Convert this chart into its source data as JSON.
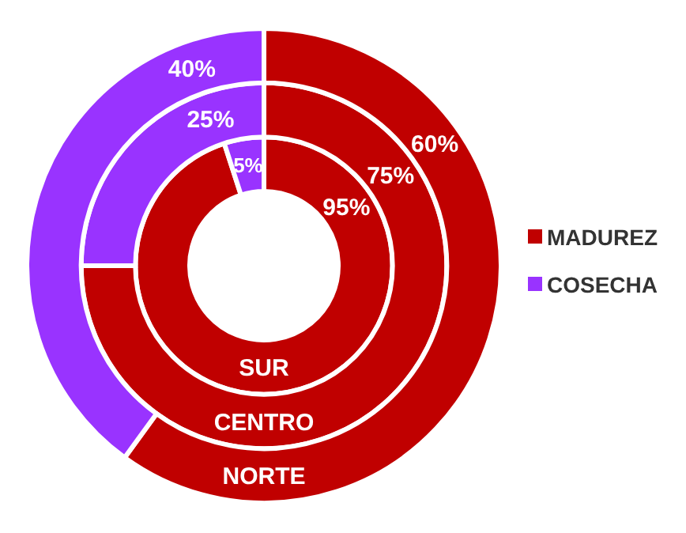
{
  "chart_data": {
    "type": "donut",
    "categories": [
      "MADUREZ",
      "COSECHA"
    ],
    "colors": [
      "#c00000",
      "#9933ff"
    ],
    "series": [
      {
        "name": "SUR",
        "values": [
          95,
          5
        ],
        "value_labels": [
          "95%",
          "5%"
        ]
      },
      {
        "name": "CENTRO",
        "values": [
          75,
          25
        ],
        "value_labels": [
          "75%",
          "25%"
        ]
      },
      {
        "name": "NORTE",
        "values": [
          60,
          40
        ],
        "value_labels": [
          "60%",
          "40%"
        ]
      }
    ],
    "legend": "right"
  }
}
